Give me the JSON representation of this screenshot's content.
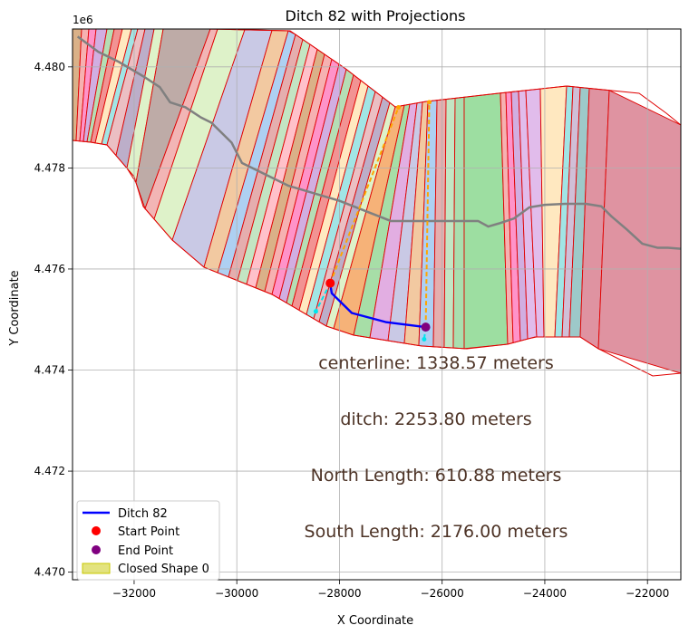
{
  "chart_data": {
    "type": "line",
    "title": "Ditch 82 with Projections",
    "xlabel": "X Coordinate",
    "ylabel": "Y Coordinate",
    "y_offset_label": "1e6",
    "xlim": [
      -33200,
      -21350
    ],
    "ylim": [
      4469850,
      4480750
    ],
    "x_ticks": [
      -32000,
      -30000,
      -28000,
      -26000,
      -24000,
      -22000
    ],
    "x_tick_labels": [
      "−32000",
      "−30000",
      "−28000",
      "−26000",
      "−24000",
      "−22000"
    ],
    "y_ticks": [
      4470000,
      4472000,
      4474000,
      4476000,
      4478000,
      4480000
    ],
    "y_tick_labels": [
      "4.470",
      "4.472",
      "4.474",
      "4.476",
      "4.478",
      "4.480"
    ],
    "grid": true,
    "legend_position": "lower-left",
    "series": [
      {
        "name": "Ditch 82",
        "kind": "line",
        "color": "#0000ff",
        "x": [
          -28180,
          -28150,
          -27760,
          -27100,
          -26330
        ],
        "y": [
          4475700,
          4475520,
          4475130,
          4474950,
          4474850
        ]
      },
      {
        "name": "Start Point",
        "kind": "point",
        "color": "#ff0000",
        "x": [
          -28180
        ],
        "y": [
          4475720
        ]
      },
      {
        "name": "End Point",
        "kind": "point",
        "color": "#800080",
        "x": [
          -26320
        ],
        "y": [
          4474850
        ]
      },
      {
        "name": "Closed Shape 0",
        "kind": "polygon",
        "color": "#c8c800"
      }
    ],
    "centerline": {
      "color": "#808080",
      "x": [
        -33100,
        -32700,
        -32300,
        -31800,
        -31500,
        -31300,
        -31000,
        -30700,
        -30500,
        -30100,
        -29900,
        -29500,
        -29000,
        -28500,
        -28000,
        -27500,
        -27000,
        -26500,
        -25800,
        -25300,
        -25100,
        -24900,
        -24600,
        -24300,
        -24000,
        -23600,
        -23200,
        -22900,
        -22700,
        -22400,
        -22100,
        -21800,
        -21600,
        -21350
      ],
      "y": [
        4480600,
        4480300,
        4480100,
        4479800,
        4479600,
        4479300,
        4479200,
        4479000,
        4478900,
        4478500,
        4478100,
        4477900,
        4477650,
        4477500,
        4477350,
        4477150,
        4476950,
        4476950,
        4476950,
        4476950,
        4476840,
        4476900,
        4477000,
        4477220,
        4477270,
        4477290,
        4477290,
        4477240,
        4477040,
        4476780,
        4476500,
        4476420,
        4476420,
        4476400
      ]
    },
    "projections": [
      {
        "color": "#00e5ee",
        "x": [
          -28180,
          -28460
        ],
        "y": [
          4475720,
          4475160
        ]
      },
      {
        "color": "#ffa500",
        "x": [
          -28180,
          -26850
        ],
        "y": [
          4475720,
          4479200
        ]
      },
      {
        "color": "#00e5ee",
        "x": [
          -26320,
          -26350
        ],
        "y": [
          4474850,
          4474610
        ]
      },
      {
        "color": "#ffa500",
        "x": [
          -26320,
          -26250
        ],
        "y": [
          4474850,
          4479300
        ]
      }
    ],
    "annotations": [
      "centerline: 1338.57 meters",
      "ditch: 2253.80 meters",
      "North Length: 610.88 meters",
      "South Length: 2176.00 meters"
    ]
  }
}
